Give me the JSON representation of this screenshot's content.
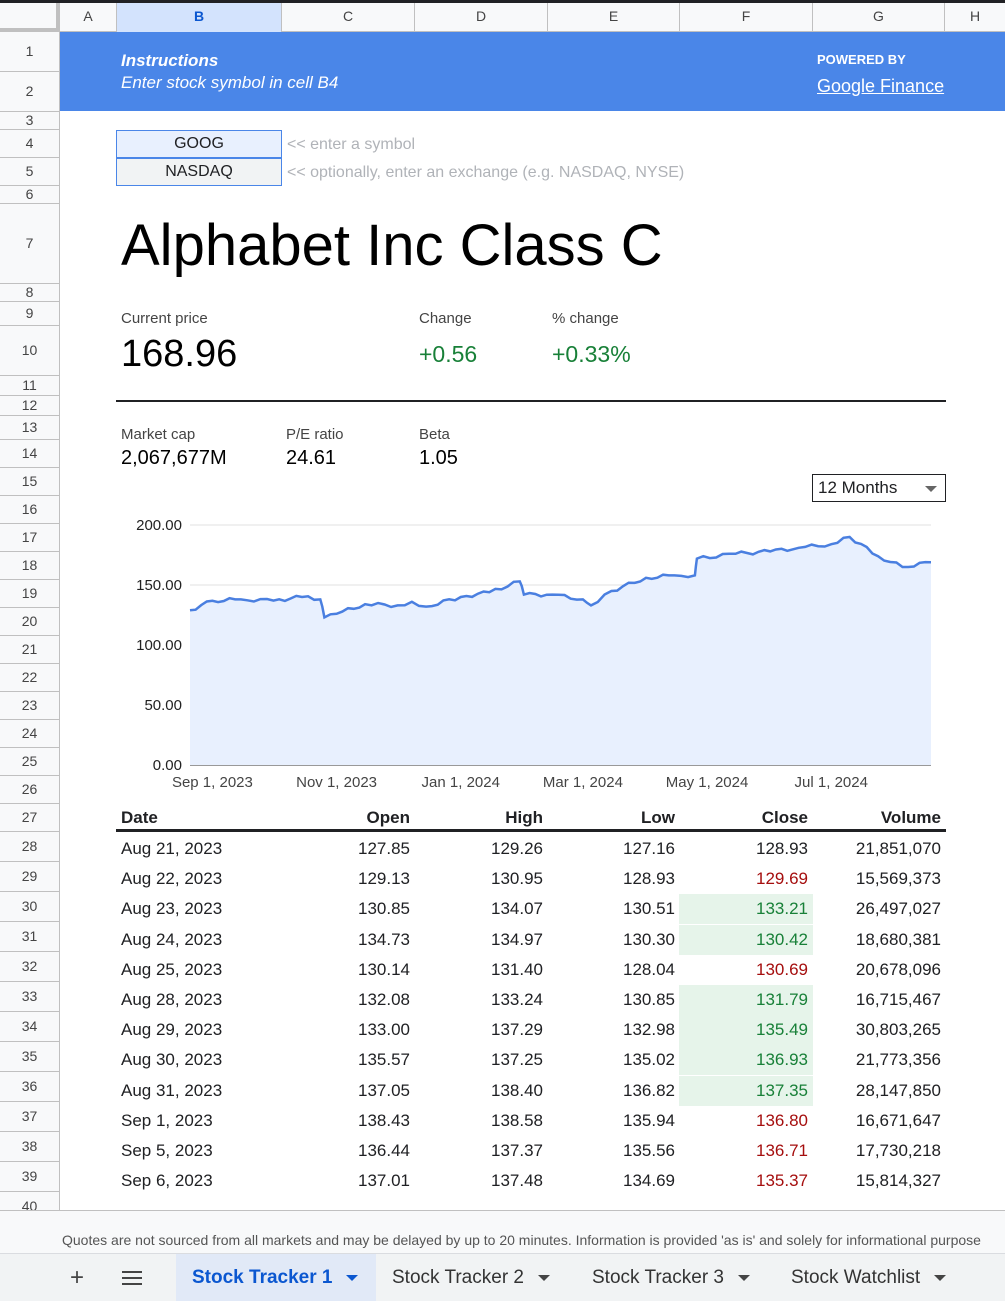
{
  "columns": [
    "A",
    "B",
    "C",
    "D",
    "E",
    "F",
    "G",
    "H"
  ],
  "rows": [
    "1",
    "2",
    "3",
    "4",
    "5",
    "6",
    "7",
    "8",
    "9",
    "10",
    "11",
    "12",
    "13",
    "14",
    "15",
    "16",
    "17",
    "18",
    "19",
    "20",
    "21",
    "22",
    "23",
    "24",
    "25",
    "26",
    "27",
    "28",
    "29",
    "30",
    "31",
    "32",
    "33",
    "34",
    "35",
    "36",
    "37",
    "38",
    "39",
    "40"
  ],
  "banner": {
    "instructions_title": "Instructions",
    "instructions_text": "Enter stock symbol in cell B4",
    "powered_by": "POWERED BY",
    "source_link": "Google Finance",
    "color": "#4a86e8"
  },
  "inputs": {
    "symbol": "GOOG",
    "symbol_hint": "<< enter a symbol",
    "exchange": "NASDAQ",
    "exchange_hint": "<< optionally, enter an exchange (e.g. NASDAQ, NYSE)"
  },
  "company_name": "Alphabet Inc Class C",
  "quote": {
    "current_price_label": "Current price",
    "current_price": "168.96",
    "change_label": "Change",
    "change": "+0.56",
    "pct_change_label": "% change",
    "pct_change": "+0.33%",
    "positive_color": "#188038"
  },
  "stats": {
    "market_cap_label": "Market cap",
    "market_cap": "2,067,677M",
    "pe_label": "P/E ratio",
    "pe": "24.61",
    "beta_label": "Beta",
    "beta": "1.05"
  },
  "range_dropdown": {
    "selected": "12 Months"
  },
  "chart_data": {
    "type": "area",
    "ylim": [
      0,
      200
    ],
    "yticks": [
      "0.00",
      "50.00",
      "100.00",
      "150.00",
      "200.00"
    ],
    "xticks": [
      "Sep 1, 2023",
      "Nov 1, 2023",
      "Jan 1, 2024",
      "Mar 1, 2024",
      "May 1, 2024",
      "Jul 1, 2024"
    ],
    "x": [
      "2023-08-21",
      "2023-09-01",
      "2023-09-15",
      "2023-10-01",
      "2023-10-15",
      "2023-10-24",
      "2023-10-26",
      "2023-11-01",
      "2023-11-15",
      "2023-12-01",
      "2023-12-08",
      "2023-12-15",
      "2024-01-01",
      "2024-01-15",
      "2024-01-30",
      "2024-02-01",
      "2024-02-15",
      "2024-03-01",
      "2024-03-05",
      "2024-03-15",
      "2024-04-01",
      "2024-04-15",
      "2024-04-25",
      "2024-04-26",
      "2024-05-15",
      "2024-06-01",
      "2024-06-15",
      "2024-07-01",
      "2024-07-10",
      "2024-07-24",
      "2024-08-05",
      "2024-08-19"
    ],
    "values": [
      128.93,
      136.8,
      138,
      137,
      140,
      138,
      123,
      126,
      134,
      133,
      136,
      132,
      140,
      144,
      153,
      142,
      142,
      138,
      133,
      145,
      156,
      158,
      158,
      172,
      176,
      178,
      181,
      184,
      190,
      174,
      165,
      168.96
    ],
    "line_color": "#4a7fe0",
    "fill_color": "#e8f0fe"
  },
  "table": {
    "headers": [
      "Date",
      "Open",
      "High",
      "Low",
      "Close",
      "Volume"
    ],
    "rows": [
      {
        "date": "Aug 21, 2023",
        "open": "127.85",
        "high": "129.26",
        "low": "127.16",
        "close": "128.93",
        "volume": "21,851,070",
        "trend": "none"
      },
      {
        "date": "Aug 22, 2023",
        "open": "129.13",
        "high": "130.95",
        "low": "128.93",
        "close": "129.69",
        "volume": "15,569,373",
        "trend": "down"
      },
      {
        "date": "Aug 23, 2023",
        "open": "130.85",
        "high": "134.07",
        "low": "130.51",
        "close": "133.21",
        "volume": "26,497,027",
        "trend": "up"
      },
      {
        "date": "Aug 24, 2023",
        "open": "134.73",
        "high": "134.97",
        "low": "130.30",
        "close": "130.42",
        "volume": "18,680,381",
        "trend": "up"
      },
      {
        "date": "Aug 25, 2023",
        "open": "130.14",
        "high": "131.40",
        "low": "128.04",
        "close": "130.69",
        "volume": "20,678,096",
        "trend": "down"
      },
      {
        "date": "Aug 28, 2023",
        "open": "132.08",
        "high": "133.24",
        "low": "130.85",
        "close": "131.79",
        "volume": "16,715,467",
        "trend": "up"
      },
      {
        "date": "Aug 29, 2023",
        "open": "133.00",
        "high": "137.29",
        "low": "132.98",
        "close": "135.49",
        "volume": "30,803,265",
        "trend": "up"
      },
      {
        "date": "Aug 30, 2023",
        "open": "135.57",
        "high": "137.25",
        "low": "135.02",
        "close": "136.93",
        "volume": "21,773,356",
        "trend": "up"
      },
      {
        "date": "Aug 31, 2023",
        "open": "137.05",
        "high": "138.40",
        "low": "136.82",
        "close": "137.35",
        "volume": "28,147,850",
        "trend": "up"
      },
      {
        "date": "Sep 1, 2023",
        "open": "138.43",
        "high": "138.58",
        "low": "135.94",
        "close": "136.80",
        "volume": "16,671,647",
        "trend": "down"
      },
      {
        "date": "Sep 5, 2023",
        "open": "136.44",
        "high": "137.37",
        "low": "135.56",
        "close": "136.71",
        "volume": "17,730,218",
        "trend": "down"
      },
      {
        "date": "Sep 6, 2023",
        "open": "137.01",
        "high": "137.48",
        "low": "134.69",
        "close": "135.37",
        "volume": "15,814,327",
        "trend": "down"
      }
    ],
    "up_bg": "#e6f4ea",
    "up_color": "#188038",
    "down_color": "#a50e0e"
  },
  "disclaimer": "Quotes are not sourced from all markets and may be delayed by up to 20 minutes. Information is provided 'as is' and solely for informational purpose",
  "sheet_tabs": [
    {
      "label": "Stock Tracker 1",
      "active": true
    },
    {
      "label": "Stock Tracker 2",
      "active": false
    },
    {
      "label": "Stock Tracker 3",
      "active": false
    },
    {
      "label": "Stock Watchlist",
      "active": false
    }
  ]
}
